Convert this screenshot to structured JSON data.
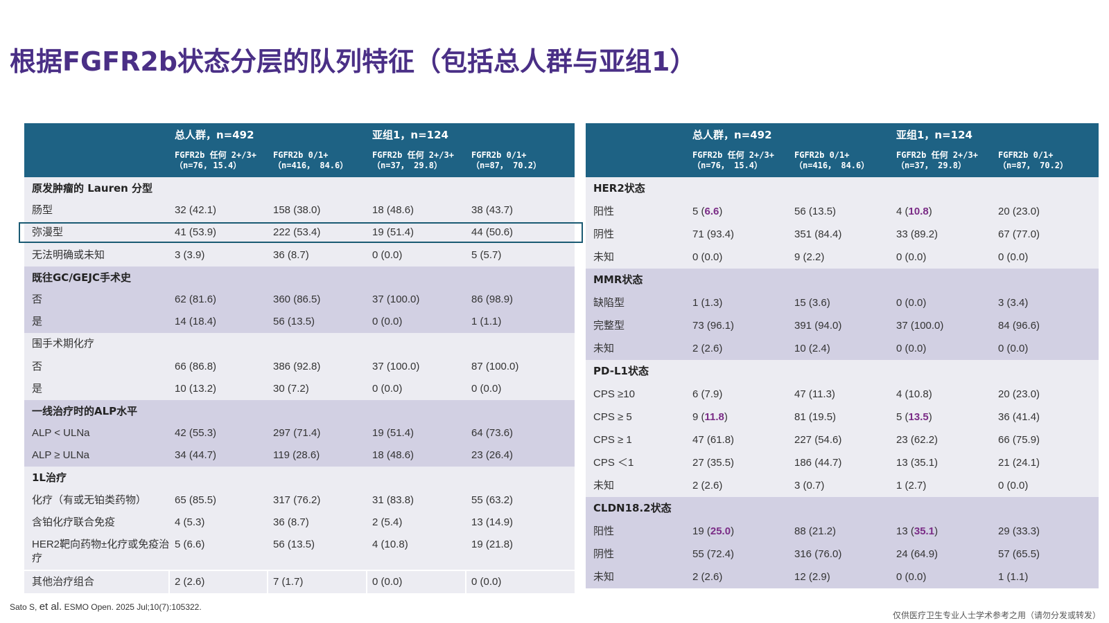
{
  "title": "根据FGFR2b状态分层的队列特征（包括总人群与亚组1）",
  "header": {
    "group1": "总人群，n=492",
    "group2": "亚组1，n=124",
    "cols": [
      {
        "line1": "FGFR2b 任何 2+/3+",
        "line2": "（n=76, 15.4）"
      },
      {
        "line1": "FGFR2b  0/1+",
        "line2": "（n=416， 84.6）"
      },
      {
        "line1": "FGFR2b 任何 2+/3+",
        "line2": "（n=37， 29.8）"
      },
      {
        "line1": "FGFR2b  0/1+",
        "line2": "（n=87， 70.2）"
      }
    ],
    "cols_right": [
      {
        "line1": "FGFR2b 任何 2+/3+",
        "line2": "（n=76， 15.4）"
      },
      {
        "line1": "FGFR2b  0/1+",
        "line2": "（n=416， 84.6）"
      },
      {
        "line1": "FGFR2b 任何 2+/3+",
        "line2": "（n=37， 29.8）"
      },
      {
        "line1": "FGFR2b  0/1+",
        "line2": "（n=87， 70.2）"
      }
    ]
  },
  "left": {
    "s1": "原发肿瘤的 Lauren 分型",
    "r1": {
      "label": "肠型",
      "v": [
        "32 (42.1)",
        "158 (38.0)",
        "18 (48.6)",
        "38 (43.7)"
      ]
    },
    "r2": {
      "label": "弥漫型",
      "v": [
        "41 (53.9)",
        "222 (53.4)",
        "19 (51.4)",
        "44 (50.6)"
      ]
    },
    "r3": {
      "label": "无法明确或未知",
      "v": [
        "3 (3.9)",
        "36 (8.7)",
        "0 (0.0)",
        "5 (5.7)"
      ]
    },
    "s2": "既往GC/GEJC手术史",
    "r4": {
      "label": "否",
      "v": [
        "62 (81.6)",
        "360 (86.5)",
        "37 (100.0)",
        "86 (98.9)"
      ]
    },
    "r5": {
      "label": "是",
      "v": [
        "14 (18.4)",
        "56 (13.5)",
        "0 (0.0)",
        "1 (1.1)"
      ]
    },
    "s3": "围手术期化疗",
    "r6": {
      "label": "否",
      "v": [
        "66 (86.8)",
        "386 (92.8)",
        "37 (100.0)",
        "87 (100.0)"
      ]
    },
    "r7": {
      "label": "是",
      "v": [
        "10 (13.2)",
        "30 (7.2)",
        "0 (0.0)",
        "0 (0.0)"
      ]
    },
    "s4": "一线治疗时的ALP水平",
    "r8": {
      "label": "ALP < ULNa",
      "v": [
        "42 (55.3)",
        "297 (71.4)",
        "19 (51.4)",
        "64 (73.6)"
      ]
    },
    "r9": {
      "label": "ALP ≥ ULNa",
      "v": [
        "34 (44.7)",
        "119 (28.6)",
        "18 (48.6)",
        "23 (26.4)"
      ]
    },
    "s5": "1L治疗",
    "r10": {
      "label": "化疗（有或无铂类药物）",
      "v": [
        "65 (85.5)",
        "317 (76.2)",
        "31 (83.8)",
        "55 (63.2)"
      ]
    },
    "r11": {
      "label": "含铂化疗联合免疫",
      "v": [
        "4 (5.3)",
        "36 (8.7)",
        "2 (5.4)",
        "13 (14.9)"
      ]
    },
    "r12": {
      "label": "HER2靶向药物±化疗或免疫治疗",
      "v": [
        "5 (6.6)",
        "56 (13.5)",
        "4 (10.8)",
        "19 (21.8)"
      ]
    },
    "r13": {
      "label": "其他治疗组合",
      "v": [
        "2 (2.6)",
        "7 (1.7)",
        "0 (0.0)",
        "0 (0.0)"
      ]
    }
  },
  "right": {
    "s1": "HER2状态",
    "r1": {
      "label": "阳性",
      "v": [
        "5 (",
        "6.6",
        ")",
        "56 (13.5)",
        "4 (",
        "10.8",
        ")",
        "20 (23.0)"
      ]
    },
    "r2": {
      "label": "阴性",
      "v": [
        "71 (93.4)",
        "351 (84.4)",
        "33 (89.2)",
        "67 (77.0)"
      ]
    },
    "r3": {
      "label": "未知",
      "v": [
        "0 (0.0)",
        "9 (2.2)",
        "0 (0.0)",
        "0 (0.0)"
      ]
    },
    "s2": "MMR状态",
    "r4": {
      "label": "缺陷型",
      "v": [
        "1 (1.3)",
        "15 (3.6)",
        "0 (0.0)",
        "3 (3.4)"
      ]
    },
    "r5": {
      "label": "完整型",
      "v": [
        "73 (96.1)",
        "391 (94.0)",
        "37 (100.0)",
        "84 (96.6)"
      ]
    },
    "r6": {
      "label": "未知",
      "v": [
        "2 (2.6)",
        "10 (2.4)",
        "0 (0.0)",
        "0 (0.0)"
      ]
    },
    "s3": "PD-L1状态",
    "r7": {
      "label": "CPS ≥10",
      "v": [
        "6 (7.9)",
        "47 (11.3)",
        "4 (10.8)",
        "20 (23.0)"
      ]
    },
    "r8": {
      "label": "CPS ≥ 5",
      "v": [
        "9 (",
        "11.8",
        ")",
        "81 (19.5)",
        "5 (",
        "13.5",
        ")",
        "36 (41.4)"
      ]
    },
    "r9": {
      "label": "CPS ≥ 1",
      "v": [
        "47 (61.8)",
        "227 (54.6)",
        "23 (62.2)",
        "66 (75.9)"
      ]
    },
    "r10": {
      "label": "CPS ＜1",
      "v": [
        "27 (35.5)",
        "186 (44.7)",
        "13 (35.1)",
        "21 (24.1)"
      ]
    },
    "r11": {
      "label": "未知",
      "v": [
        "2 (2.6)",
        "3 (0.7)",
        "1 (2.7)",
        "0 (0.0)"
      ]
    },
    "s4": "CLDN18.2状态",
    "r12": {
      "label": "阳性",
      "v": [
        "19 (",
        "25.0",
        ")",
        "88 (21.2)",
        "13 (",
        "35.1",
        ")",
        "29 (33.3)"
      ]
    },
    "r13": {
      "label": "阴性",
      "v": [
        "55 (72.4)",
        "316 (76.0)",
        "24 (64.9)",
        "57 (65.5)"
      ]
    },
    "r14": {
      "label": "未知",
      "v": [
        "2 (2.6)",
        "12 (2.9)",
        "0 (0.0)",
        "1 (1.1)"
      ]
    }
  },
  "citation": {
    "authors": "Sato S, ",
    "etal": "et al.",
    "source": " ESMO Open. 2025 Jul;10(7):105322."
  },
  "footer": "仅供医疗卫生专业人士学术参考之用（请勿分发或转发）",
  "colors": {
    "title": "#4a2f86",
    "header_bg": "#1e6284",
    "highlight": "#7a2b86",
    "row_light": "#ececf2",
    "row_dark": "#d2d0e3"
  }
}
